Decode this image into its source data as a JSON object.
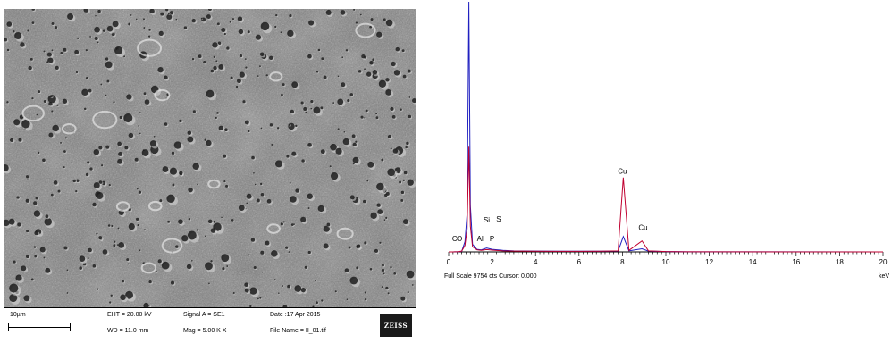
{
  "sem": {
    "scale_label": "10µm",
    "eht": "EHT = 20.00 kV",
    "wd": "WD = 11.0 mm",
    "signal": "Signal A = SE1",
    "mag": "Mag =   5.00 K X",
    "date": "Date :17 Apr 2015",
    "file_name": "File Name = II_01.tif",
    "logo": "ZEISS"
  },
  "chart_data": {
    "type": "line",
    "xlabel": "keV",
    "xlim": [
      0,
      20
    ],
    "x_ticks": [
      "0",
      "2",
      "4",
      "6",
      "8",
      "10",
      "12",
      "14",
      "16",
      "18",
      "20"
    ],
    "footer": "Full Scale 9754 cts Cursor: 0.000",
    "series": [
      {
        "color": "#2020c0",
        "points": [
          [
            0,
            0
          ],
          [
            0.2,
            2
          ],
          [
            0.4,
            4
          ],
          [
            0.6,
            20
          ],
          [
            0.75,
            400
          ],
          [
            0.85,
            1500
          ],
          [
            0.93,
            9754
          ],
          [
            1.0,
            1800
          ],
          [
            1.1,
            300
          ],
          [
            1.3,
            100
          ],
          [
            1.5,
            80
          ],
          [
            1.75,
            150
          ],
          [
            2.0,
            100
          ],
          [
            2.5,
            60
          ],
          [
            3,
            40
          ],
          [
            4,
            30
          ],
          [
            5,
            25
          ],
          [
            6,
            25
          ],
          [
            7,
            25
          ],
          [
            7.8,
            30
          ],
          [
            8.04,
            600
          ],
          [
            8.3,
            40
          ],
          [
            8.9,
            120
          ],
          [
            9.2,
            30
          ],
          [
            10,
            15
          ],
          [
            11,
            5
          ],
          [
            20,
            0
          ]
        ]
      },
      {
        "color": "#c00030",
        "points": [
          [
            0,
            0
          ],
          [
            0.2,
            2
          ],
          [
            0.4,
            5
          ],
          [
            0.6,
            30
          ],
          [
            0.75,
            250
          ],
          [
            0.85,
            900
          ],
          [
            0.93,
            4100
          ],
          [
            1.0,
            1000
          ],
          [
            1.1,
            200
          ],
          [
            1.3,
            80
          ],
          [
            1.5,
            60
          ],
          [
            1.75,
            90
          ],
          [
            2.0,
            70
          ],
          [
            2.5,
            40
          ],
          [
            3,
            30
          ],
          [
            4,
            25
          ],
          [
            5,
            22
          ],
          [
            6,
            22
          ],
          [
            7,
            25
          ],
          [
            7.8,
            40
          ],
          [
            8.04,
            2900
          ],
          [
            8.3,
            60
          ],
          [
            8.9,
            430
          ],
          [
            9.2,
            40
          ],
          [
            10,
            12
          ],
          [
            11,
            4
          ],
          [
            20,
            0
          ]
        ]
      }
    ],
    "peak_labels": [
      {
        "text": "C",
        "x": 0.28,
        "y": 420
      },
      {
        "text": "O",
        "x": 0.5,
        "y": 420
      },
      {
        "text": "Al",
        "x": 1.45,
        "y": 410
      },
      {
        "text": "Si",
        "x": 1.75,
        "y": 1150
      },
      {
        "text": "P",
        "x": 2.0,
        "y": 410
      },
      {
        "text": "S",
        "x": 2.3,
        "y": 1180
      },
      {
        "text": "Cu",
        "x": 8.0,
        "y": 3050
      },
      {
        "text": "Cu",
        "x": 8.95,
        "y": 850
      }
    ]
  }
}
